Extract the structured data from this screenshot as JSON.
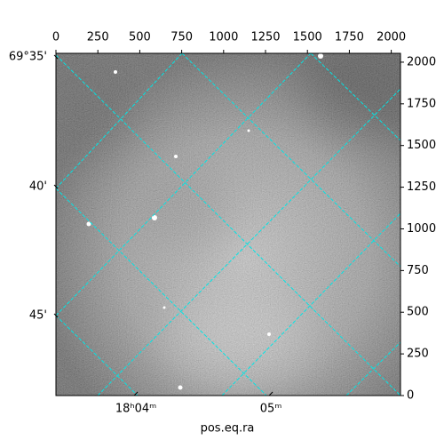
{
  "chart_data": {
    "type": "image",
    "xlabel": "pos.eq.ra",
    "xlim": [
      0,
      2055
    ],
    "ylim": [
      0,
      2053
    ],
    "xticks": [
      0,
      250,
      500,
      750,
      1000,
      1250,
      1500,
      1750,
      2000
    ],
    "yticks": [
      0,
      250,
      500,
      750,
      1000,
      1250,
      1500,
      1750,
      2000
    ],
    "ra_ticks": [
      {
        "value": 477,
        "label": "18ʰ04ᵐ"
      },
      {
        "value": 1282,
        "label": "05ᵐ"
      }
    ],
    "dec_ticks": [
      {
        "value": 2032,
        "label": "69°35'"
      },
      {
        "value": 1253,
        "label": "40'"
      },
      {
        "value": 480,
        "label": "45'"
      }
    ],
    "grid_color": "#00e5e5"
  }
}
